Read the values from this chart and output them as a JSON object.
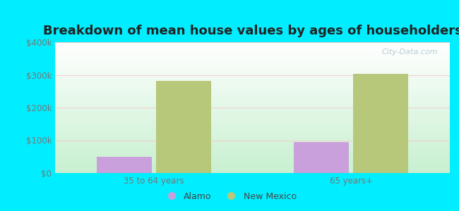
{
  "title": "Breakdown of mean house values by ages of householders",
  "categories": [
    "35 to 64 years",
    "65 years+"
  ],
  "series": {
    "Alamo": [
      50000,
      95000
    ],
    "New Mexico": [
      282000,
      303000
    ]
  },
  "alamo_color": "#c9a0dc",
  "new_mexico_color": "#b8c87a",
  "background_color": "#00eeff",
  "plot_bg_top": "#ffffff",
  "plot_bg_bottom": "#c8f0d0",
  "ylim": [
    0,
    400000
  ],
  "yticks": [
    0,
    100000,
    200000,
    300000,
    400000
  ],
  "ytick_labels": [
    "$0",
    "$100k",
    "$200k",
    "$300k",
    "$400k"
  ],
  "bar_width": 0.28,
  "title_fontsize": 13,
  "tick_fontsize": 8.5,
  "legend_fontsize": 9,
  "watermark": "City-Data.com"
}
